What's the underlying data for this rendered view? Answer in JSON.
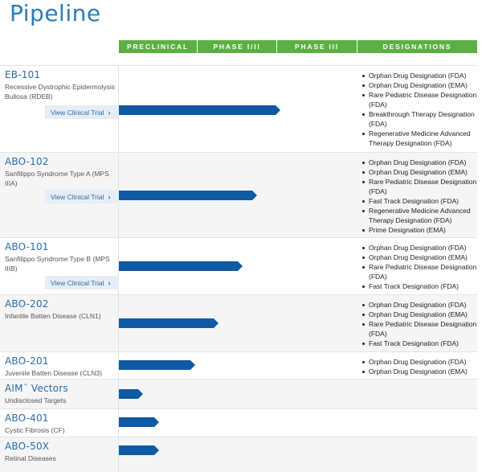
{
  "page": {
    "title": "Pipeline"
  },
  "columns": [
    "PRECLINICAL",
    "PHASE I/II",
    "PHASE III",
    "DESIGNATIONS"
  ],
  "programs": [
    {
      "name": "EB-101",
      "indication": "Recessive Dystrophic Epidermolysis Bullosa (RDEB)",
      "button": "View Clinical Trial",
      "designations": [
        "Orphan Drug Designation (FDA)",
        "Orphan Drug Designation (EMA)",
        "Rare Pediatric Disease Designation (FDA)",
        "Breakthrough Therapy Designation (FDA)",
        "Regenerative Medicine Advanced Therapy Designation (FDA)"
      ]
    },
    {
      "name": "ABO-102",
      "indication": "Sanfilippo Syndrome Type A (MPS IIIA)",
      "button": "View Clinical Trial",
      "designations": [
        "Orphan Drug Designation (FDA)",
        "Orphan Drug Designation (EMA)",
        "Rare Pediatric Disease Designation (FDA)",
        "Fast Track Designation (FDA)",
        "Regenerative Medicine Advanced Therapy Designation (FDA)",
        "Prime Designation (EMA)"
      ]
    },
    {
      "name": "ABO-101",
      "indication": "Sanfilippo Syndrome Type B (MPS IIIB)",
      "button": "View Clinical Trial",
      "designations": [
        "Orphan Drug Designation (FDA)",
        "Orphan Drug Designation (EMA)",
        "Rare Pediatric Disease Designation (FDA)",
        "Fast Track Designation (FDA)"
      ]
    },
    {
      "name": "ABO-202",
      "indication": "Infantile Batten Disease (CLN1)",
      "designations": [
        "Orphan Drug Designation (FDA)",
        "Orphan Drug Designation (EMA)",
        "Rare Pediatric Disease Designation (FDA)",
        "Fast Track Designation (FDA)"
      ]
    },
    {
      "name": "ABO-201",
      "indication": "Juvenile Batten Disease (CLN3)",
      "designations": [
        "Orphan Drug Designation (FDA)",
        "Orphan Drug Designation (EMA)"
      ]
    },
    {
      "name": "AIM",
      "name_sup": "™",
      "name_suffix": " Vectors",
      "indication": "Undisclosed Targets",
      "designations": []
    },
    {
      "name": "ABO-401",
      "indication": "Cystic Fibrosis (CF)",
      "designations": []
    },
    {
      "name": "ABO-50X",
      "indication": "Retinal Diseases",
      "designations": []
    }
  ],
  "colors": {
    "title": "#2b7bb9",
    "header": "#5cb043",
    "bar": "#0f5aa4",
    "link": "#2b6ca8"
  }
}
